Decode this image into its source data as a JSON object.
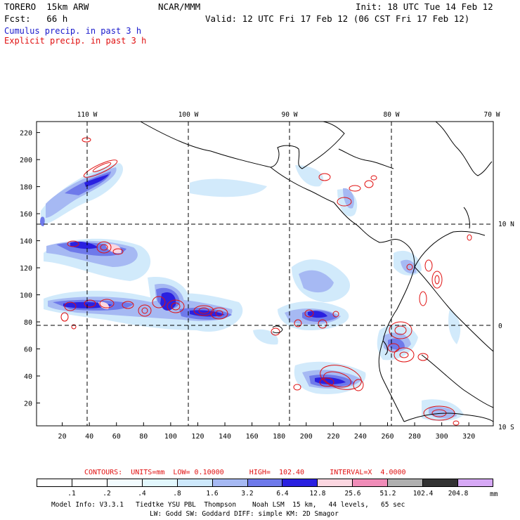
{
  "header": {
    "model": "TORERO  15km ARW",
    "org": "NCAR/MMM",
    "init": "Init: 18 UTC Tue 14 Feb 12",
    "fcst": "Fcst:   66 h",
    "valid": "Valid: 12 UTC Fri 17 Feb 12 (06 CST Fri 17 Feb 12)",
    "cumulus": "Cumulus precip. in past 3 h",
    "explicit": "Explicit precip. in past 3 h"
  },
  "map": {
    "lon_labels": [
      "110 W",
      "100 W",
      "90 W",
      "80 W",
      "70 W"
    ],
    "lat_labels": [
      "10 N",
      "0",
      "10 S"
    ],
    "y_ticks": [
      "220",
      "200",
      "180",
      "160",
      "140",
      "120",
      "100",
      "80",
      "60",
      "40",
      "20"
    ],
    "x_ticks": [
      "20",
      "40",
      "60",
      "80",
      "100",
      "120",
      "140",
      "160",
      "180",
      "200",
      "220",
      "240",
      "260",
      "280",
      "300",
      "320"
    ]
  },
  "contour_info": "CONTOURS:  UNITS=mm  LOW= 0.10000      HIGH=  102.40      INTERVAL=X  4.0000",
  "colorbar": {
    "levels": [
      ".1",
      ".2",
      ".4",
      ".8",
      "1.6",
      "3.2",
      "6.4",
      "12.8",
      "25.6",
      "51.2",
      "102.4",
      "204.8"
    ],
    "colors": [
      "#ffffff",
      "#ffffff",
      "#f2fbfe",
      "#e2f7fd",
      "#cde8fb",
      "#a6b9f3",
      "#6e79ea",
      "#2a20e0",
      "#fbd6e0",
      "#f08cb8",
      "#b0b0b0",
      "#333333",
      "#d6a8f5"
    ],
    "unit": "mm"
  },
  "footer": {
    "line1": "Model Info: V3.3.1   Tiedtke YSU PBL  Thompson    Noah LSM  15 km,   44 levels,   65 sec",
    "line2": "LW: Godd SW: Goddard DIFF: simple KM: 2D Smagor"
  }
}
